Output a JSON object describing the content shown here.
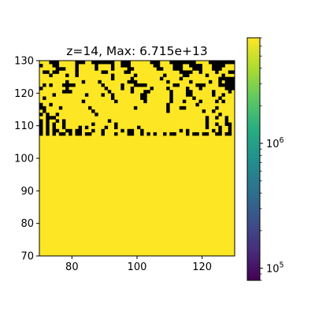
{
  "chart_data": {
    "type": "heatmap",
    "title": "z=14, Max: 6.715e+13",
    "xlabel": "",
    "ylabel": "",
    "xlim": [
      70,
      130
    ],
    "ylim": [
      70,
      130
    ],
    "x_ticks": [
      80,
      100,
      120
    ],
    "y_ticks": [
      70,
      80,
      90,
      100,
      110,
      120,
      130
    ],
    "grid": false,
    "colormap": "viridis",
    "colorbar": {
      "scale": "log",
      "range": [
        80000,
        7000000
      ],
      "ticks": [
        100000,
        1000000
      ],
      "tick_labels": [
        "10^5",
        "10^6"
      ]
    },
    "fill_color": "#fde725",
    "mask_color": "#000000",
    "grid_resolution": 60,
    "saturated_value": ">= 7e+06",
    "masked_value": "0",
    "masked_cells_rows_top_down": [
      [
        [
          3,
          6
        ],
        [
          11,
          14
        ],
        [
          16,
          23
        ],
        [
          25,
          28
        ],
        [
          34,
          37
        ],
        [
          40,
          48
        ],
        [
          52,
          60
        ]
      ],
      [
        [
          0,
          1
        ],
        [
          4,
          6
        ],
        [
          11,
          12
        ],
        [
          17,
          18
        ],
        [
          22,
          23
        ],
        [
          25,
          28
        ],
        [
          35,
          37
        ],
        [
          41,
          44
        ],
        [
          46,
          50
        ],
        [
          53,
          57
        ]
      ],
      [
        [
          5,
          8
        ],
        [
          11,
          12
        ],
        [
          17,
          18
        ],
        [
          22,
          23
        ],
        [
          27,
          29
        ],
        [
          36,
          38
        ],
        [
          41,
          44
        ],
        [
          47,
          50
        ],
        [
          53,
          56
        ]
      ],
      [
        [
          1,
          3
        ],
        [
          4,
          6
        ],
        [
          11,
          12
        ],
        [
          19,
          21
        ],
        [
          26,
          28
        ],
        [
          43,
          47
        ],
        [
          49,
          50
        ],
        [
          54,
          55
        ],
        [
          58,
          60
        ]
      ],
      [
        [
          3,
          4
        ],
        [
          8,
          9
        ],
        [
          11,
          12
        ],
        [
          22,
          23
        ],
        [
          29,
          30
        ],
        [
          38,
          39
        ],
        [
          44,
          46
        ],
        [
          51,
          52
        ],
        [
          56,
          57
        ]
      ],
      [
        [
          22,
          23
        ],
        [
          28,
          29
        ],
        [
          37,
          38
        ],
        [
          43,
          44
        ],
        [
          55,
          60
        ]
      ],
      [
        [
          8,
          9
        ],
        [
          13,
          14
        ],
        [
          18,
          19
        ],
        [
          27,
          30
        ],
        [
          39,
          40
        ],
        [
          46,
          47
        ],
        [
          52,
          53
        ],
        [
          55,
          56
        ],
        [
          57,
          60
        ]
      ],
      [
        [
          1,
          2
        ],
        [
          3,
          4
        ],
        [
          7,
          11
        ],
        [
          19,
          20
        ],
        [
          25,
          26
        ],
        [
          29,
          33
        ],
        [
          41,
          43
        ],
        [
          48,
          51
        ],
        [
          55,
          60
        ]
      ],
      [
        [
          0,
          1
        ],
        [
          8,
          9
        ],
        [
          20,
          21
        ],
        [
          25,
          26
        ],
        [
          28,
          29
        ],
        [
          34,
          35
        ],
        [
          39,
          40
        ],
        [
          45,
          46
        ],
        [
          49,
          50
        ],
        [
          57,
          60
        ]
      ],
      [
        [
          7,
          10
        ],
        [
          21,
          22
        ],
        [
          28,
          29
        ],
        [
          32,
          34
        ],
        [
          40,
          41
        ],
        [
          45,
          47
        ],
        [
          53,
          54
        ],
        [
          58,
          59
        ]
      ],
      [
        [
          4,
          5
        ],
        [
          14,
          15
        ],
        [
          19,
          20
        ],
        [
          22,
          23
        ],
        [
          31,
          33
        ],
        [
          40,
          41
        ],
        [
          45,
          47
        ],
        [
          53,
          54
        ],
        [
          56,
          57
        ]
      ],
      [
        [
          1,
          2
        ],
        [
          22,
          23
        ],
        [
          31,
          33
        ],
        [
          40,
          41
        ],
        [
          47,
          48
        ],
        [
          55,
          56
        ]
      ],
      [
        [
          13,
          14
        ],
        [
          23,
          24
        ],
        [
          32,
          33
        ],
        [
          40,
          41
        ],
        [
          44,
          45
        ],
        [
          49,
          50
        ],
        [
          54,
          55
        ],
        [
          56,
          57
        ]
      ],
      [
        [
          0,
          1
        ],
        [
          3,
          4
        ],
        [
          39,
          40
        ],
        [
          48,
          49
        ]
      ],
      [
        [
          0,
          1
        ],
        [
          1,
          2
        ],
        [
          6,
          7
        ],
        [
          15,
          16
        ],
        [
          29,
          30
        ],
        [
          39,
          40
        ],
        [
          43,
          44
        ],
        [
          44,
          45
        ],
        [
          54,
          55
        ]
      ],
      [
        [
          1,
          2
        ],
        [
          16,
          17
        ],
        [
          39,
          40
        ],
        [
          50,
          51
        ],
        [
          53,
          54
        ]
      ],
      [
        [
          0,
          1
        ],
        [
          2,
          3
        ],
        [
          5,
          6
        ],
        [
          17,
          18
        ],
        [
          55,
          56
        ]
      ],
      [
        [
          2,
          3
        ],
        [
          3,
          4
        ],
        [
          4,
          5
        ],
        [
          51,
          52
        ],
        [
          54,
          55
        ],
        [
          57,
          58
        ]
      ],
      [
        [
          0,
          1
        ],
        [
          2,
          3
        ],
        [
          5,
          6
        ],
        [
          7,
          8
        ],
        [
          21,
          22
        ],
        [
          51,
          52
        ],
        [
          57,
          58
        ]
      ],
      [
        [
          0,
          1
        ],
        [
          2,
          3
        ],
        [
          4,
          5
        ],
        [
          7,
          8
        ],
        [
          16,
          17
        ],
        [
          23,
          24
        ],
        [
          51,
          52
        ],
        [
          54,
          55
        ],
        [
          57,
          58
        ],
        [
          58,
          59
        ]
      ],
      [
        [
          0,
          1
        ],
        [
          2,
          3
        ],
        [
          4,
          5
        ],
        [
          7,
          8
        ],
        [
          12,
          13
        ],
        [
          14,
          15
        ],
        [
          20,
          21
        ],
        [
          23,
          24
        ],
        [
          30,
          31
        ],
        [
          51,
          52
        ],
        [
          55,
          56
        ],
        [
          58,
          59
        ]
      ],
      [
        [
          0,
          1
        ],
        [
          2,
          3
        ],
        [
          4,
          5
        ],
        [
          5,
          6
        ],
        [
          8,
          9
        ],
        [
          9,
          10
        ],
        [
          11,
          12
        ],
        [
          12,
          13
        ],
        [
          16,
          17
        ],
        [
          19,
          20
        ],
        [
          25,
          26
        ],
        [
          27,
          28
        ],
        [
          28,
          29
        ],
        [
          31,
          32
        ],
        [
          43,
          44
        ],
        [
          45,
          46
        ],
        [
          53,
          54
        ],
        [
          55,
          56
        ],
        [
          58,
          59
        ]
      ],
      [
        [
          0,
          1
        ],
        [
          2,
          3
        ],
        [
          4,
          5
        ],
        [
          6,
          7
        ],
        [
          7,
          8
        ],
        [
          9,
          10
        ],
        [
          11,
          12
        ],
        [
          12,
          13
        ],
        [
          14,
          15
        ],
        [
          15,
          16
        ],
        [
          19,
          20
        ],
        [
          23,
          24
        ],
        [
          27,
          28
        ],
        [
          28,
          29
        ],
        [
          31,
          32
        ],
        [
          33,
          34
        ],
        [
          35,
          36
        ],
        [
          38,
          39
        ],
        [
          40,
          41
        ],
        [
          41,
          42
        ],
        [
          45,
          46
        ],
        [
          47,
          48
        ],
        [
          48,
          49
        ],
        [
          50,
          51
        ],
        [
          51,
          52
        ],
        [
          54,
          55
        ],
        [
          55,
          56
        ],
        [
          57,
          58
        ],
        [
          58,
          59
        ]
      ]
    ]
  }
}
